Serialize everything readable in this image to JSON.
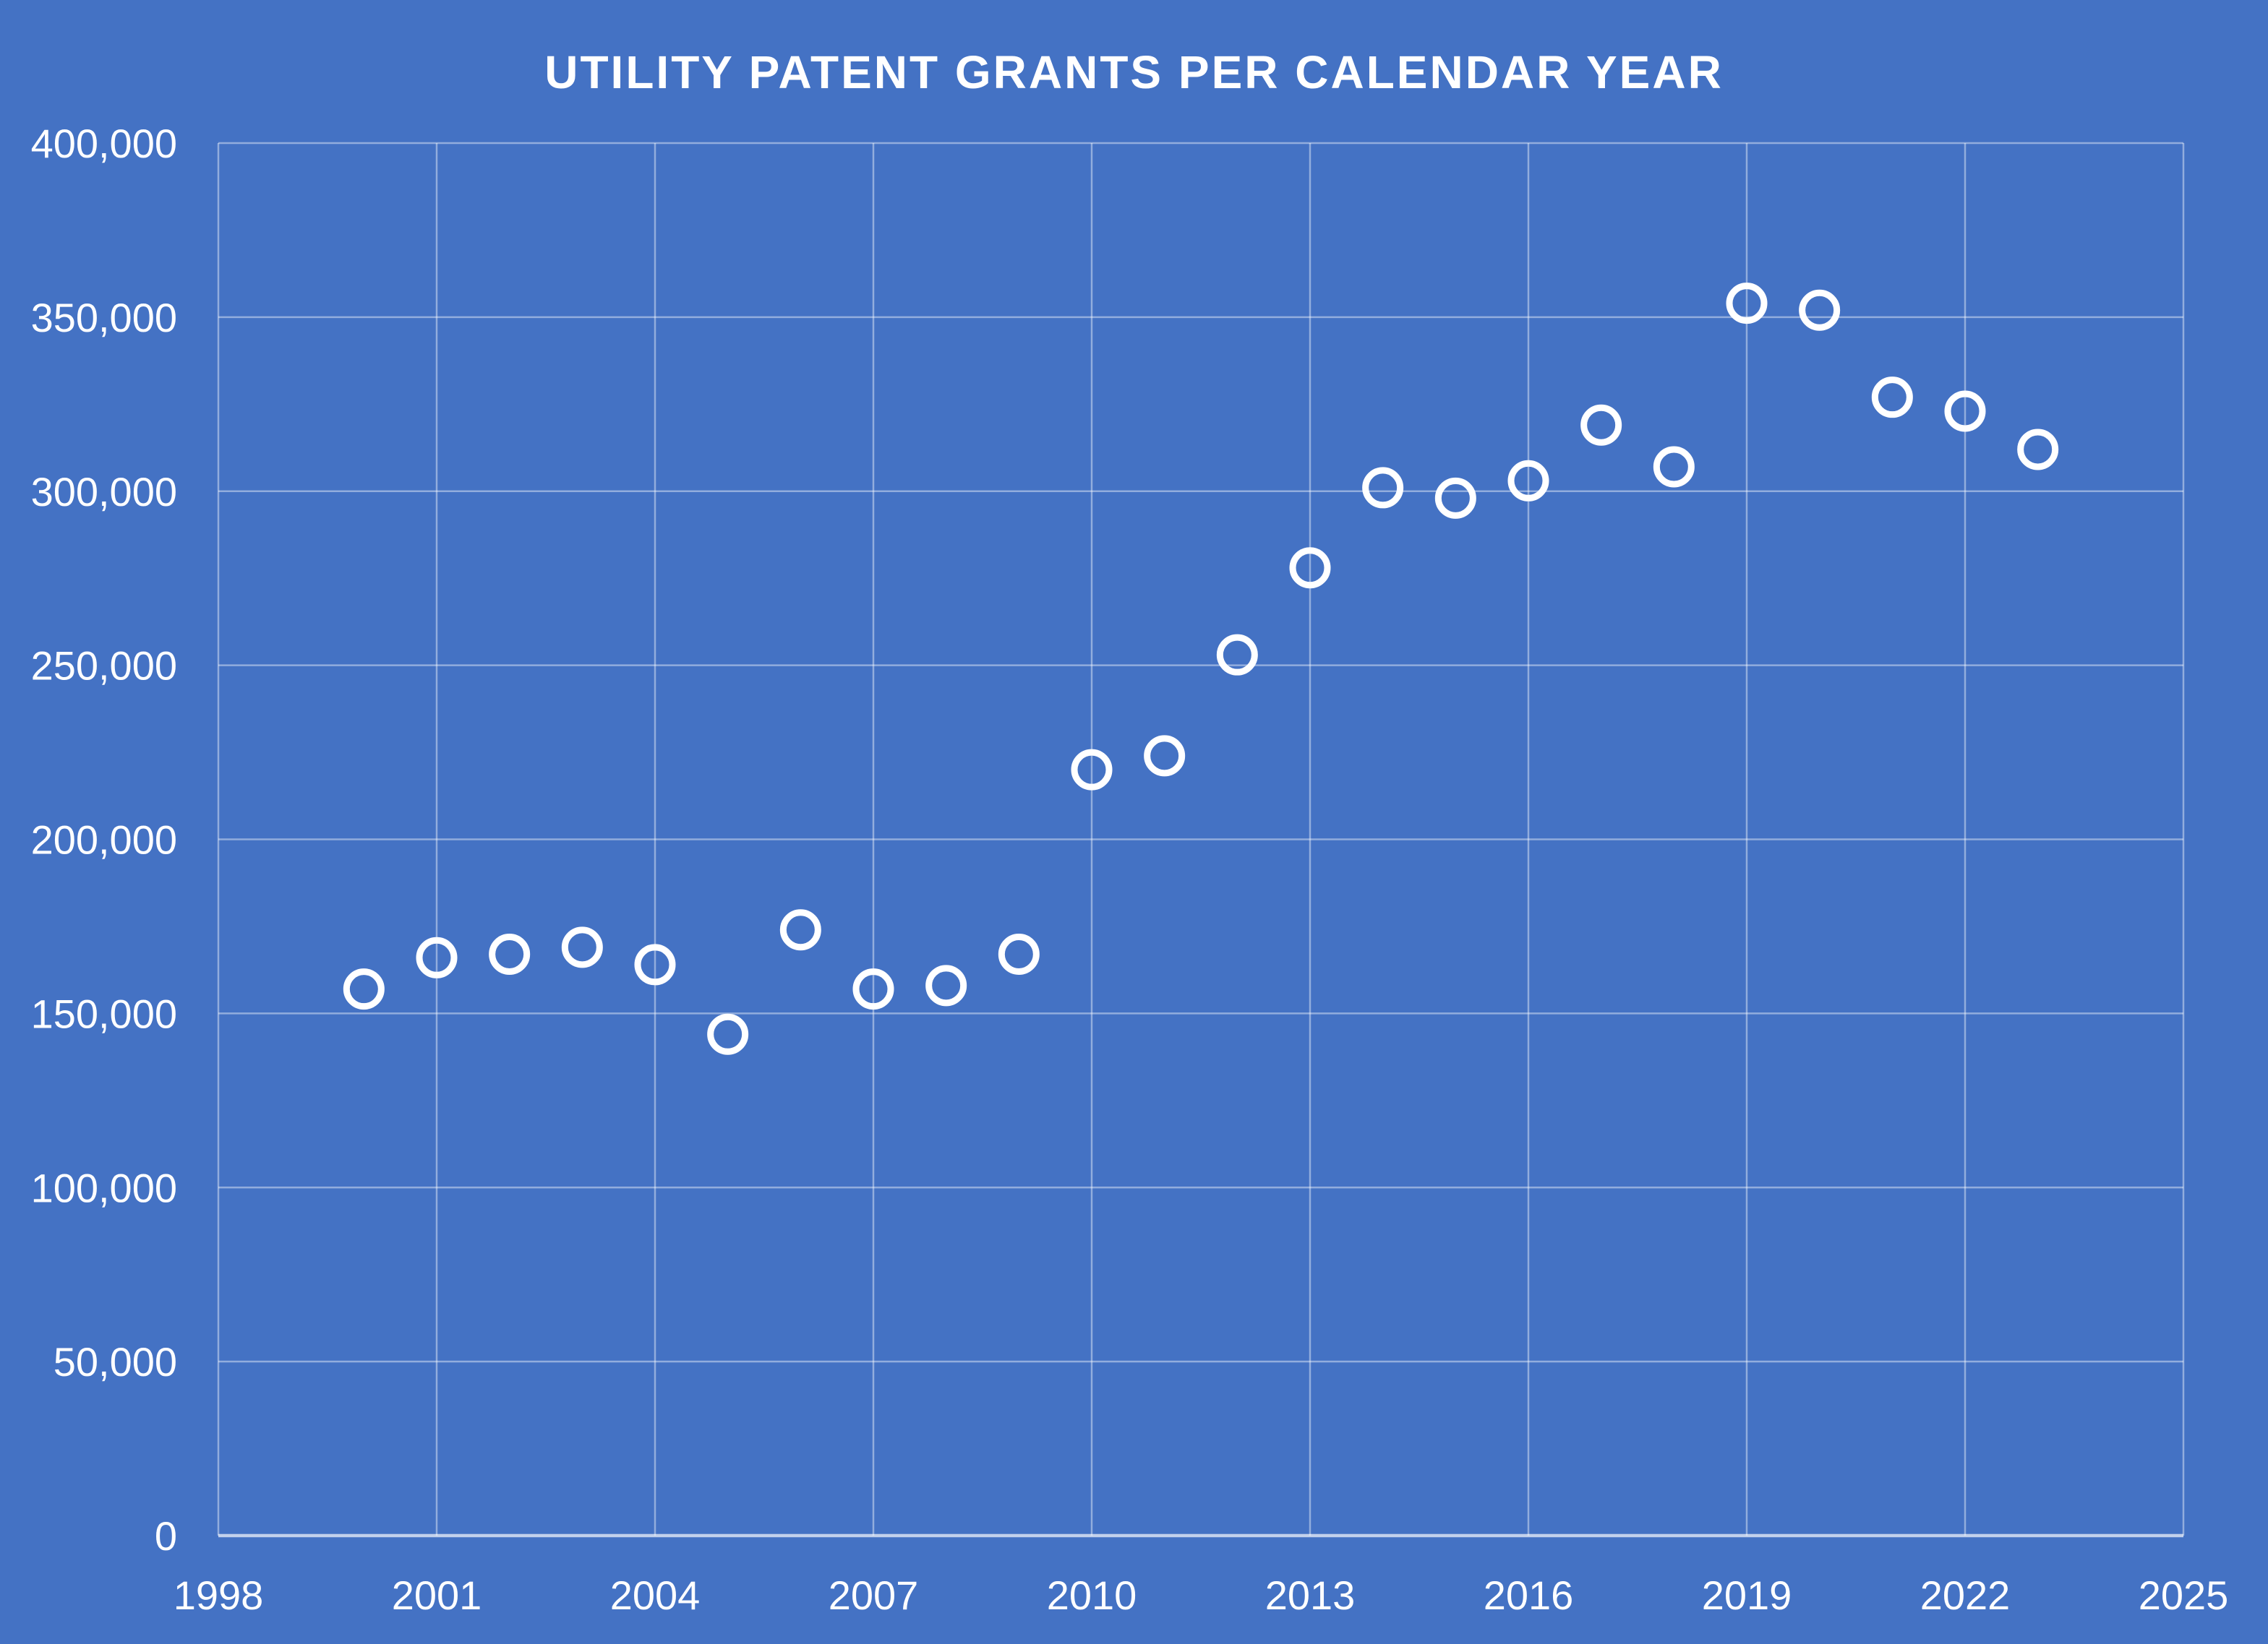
{
  "chart_data": {
    "type": "scatter",
    "title": "UTILITY PATENT GRANTS PER CALENDAR YEAR",
    "series": [
      {
        "name": "Utility patent grants",
        "x": [
          2000,
          2001,
          2002,
          2003,
          2004,
          2005,
          2006,
          2007,
          2008,
          2009,
          2010,
          2011,
          2012,
          2013,
          2014,
          2015,
          2016,
          2017,
          2018,
          2019,
          2020,
          2021,
          2022,
          2023
        ],
        "y": [
          157000,
          166000,
          167000,
          169000,
          164000,
          144000,
          174000,
          157000,
          158000,
          167000,
          220000,
          224000,
          253000,
          278000,
          301000,
          298000,
          303000,
          319000,
          307000,
          354000,
          352000,
          327000,
          323000,
          312000
        ]
      }
    ],
    "xlabel": "",
    "ylabel": "",
    "xlim": [
      1998,
      2025
    ],
    "ylim": [
      0,
      400000
    ],
    "x_ticks": [
      1998,
      2001,
      2004,
      2007,
      2010,
      2013,
      2016,
      2019,
      2022,
      2025
    ],
    "x_tick_labels": [
      "1998",
      "2001",
      "2004",
      "2007",
      "2010",
      "2013",
      "2016",
      "2019",
      "2022",
      "2025"
    ],
    "y_ticks": [
      0,
      50000,
      100000,
      150000,
      200000,
      250000,
      300000,
      350000,
      400000
    ],
    "y_tick_labels": [
      "0",
      "50,000",
      "100,000",
      "150,000",
      "200,000",
      "250,000",
      "300,000",
      "350,000",
      "400,000"
    ],
    "grid": true,
    "legend": "none",
    "marker_style": "open-circle",
    "colors": {
      "background": "#4472C4",
      "gridline": "rgba(255,255,255,0.42)",
      "axis_line": "rgba(255,255,255,0.68)",
      "marker": "#FFFFFF",
      "text": "#FFFFFF"
    }
  }
}
